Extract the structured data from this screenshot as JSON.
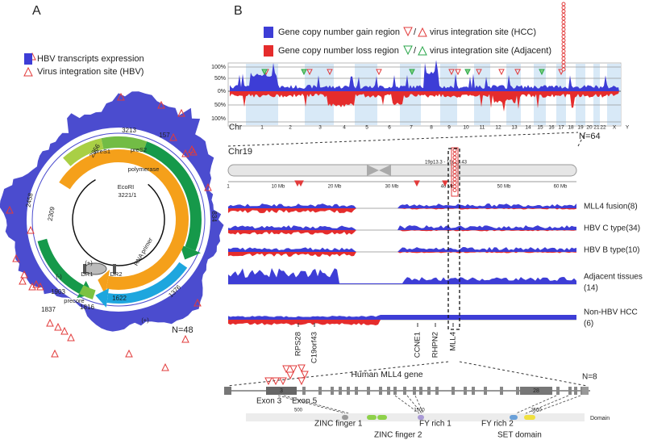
{
  "panel_a": {
    "label": "A",
    "legend": [
      "HBV transcripts expression",
      "Virus integration site (HBV)"
    ],
    "genome_positions": [
      "3213",
      "157",
      "2856",
      "2458",
      "2309",
      "1903",
      "1816",
      "1837",
      "1622",
      "1376",
      "834"
    ],
    "features": [
      "preS1",
      "preS2",
      "polymerase",
      "EcoRI",
      "3221/1",
      "DR1",
      "DR2",
      "RNA primer",
      "precore",
      "(+)",
      "(-)",
      "(+)"
    ],
    "n": "N=48"
  },
  "panel_b": {
    "label": "B",
    "legend": [
      "Gene copy number gain region",
      "Gene copy number loss region",
      "virus integration site (HCC)",
      "virus integration site (Adjacent)"
    ],
    "legend_sep": "/",
    "genome_axis": [
      "100%",
      "50%",
      "0%",
      "50%",
      "100%"
    ],
    "chr_label": "Chr",
    "chromosomes": [
      "1",
      "2",
      "3",
      "4",
      "5",
      "6",
      "7",
      "8",
      "9",
      "10",
      "11",
      "12",
      "13",
      "14",
      "15",
      "16",
      "17",
      "18",
      "19",
      "20",
      "21",
      "22",
      "X",
      "Y"
    ],
    "n_genome": "N=64",
    "chr19": {
      "title": "Chr19",
      "band": "19p13.3 - 19q13.43",
      "mb_ticks": [
        "1",
        "10 Mb",
        "20 Mb",
        "30 Mb",
        "40 Mb",
        "50 Mb",
        "60 Mb"
      ],
      "tracks": [
        [
          "MLL4 fusion(8)"
        ],
        [
          "HBV C type(34)"
        ],
        [
          "HBV B type(10)"
        ],
        [
          "Adjacent tissues",
          "(14)"
        ],
        [
          "Non-HBV HCC",
          "(6)"
        ]
      ],
      "genes": [
        "RPS28",
        "C19orf43",
        "CCNE1",
        "RHPN2",
        "MLL4"
      ]
    },
    "mll4": {
      "title": "Human MLL4 gene",
      "n": "N=8",
      "exons": [
        "Exon 3",
        "Exon 5"
      ],
      "exon_box_labels": [
        "3",
        "28"
      ],
      "domain_axis": [
        "500",
        "1500",
        "2500"
      ],
      "domain_label": "Domain",
      "domains": [
        "ZINC finger 1",
        "ZINC finger 2",
        "FY rich 1",
        "FY rich 2",
        "SET domain"
      ]
    }
  }
}
